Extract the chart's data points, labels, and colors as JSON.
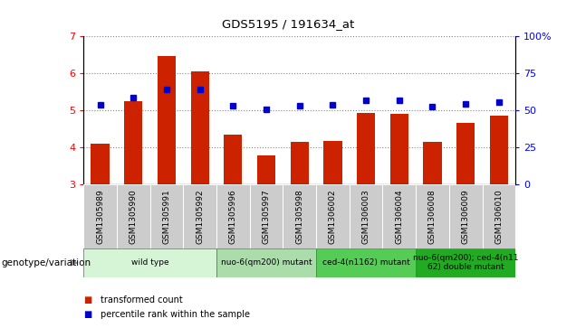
{
  "title": "GDS5195 / 191634_at",
  "samples": [
    "GSM1305989",
    "GSM1305990",
    "GSM1305991",
    "GSM1305992",
    "GSM1305996",
    "GSM1305997",
    "GSM1305998",
    "GSM1306002",
    "GSM1306003",
    "GSM1306004",
    "GSM1306008",
    "GSM1306009",
    "GSM1306010"
  ],
  "bar_values": [
    4.1,
    5.25,
    6.45,
    6.05,
    4.35,
    3.78,
    4.15,
    4.18,
    4.93,
    4.9,
    4.15,
    4.65,
    4.85
  ],
  "percentile_values": [
    5.15,
    5.35,
    5.57,
    5.57,
    5.12,
    5.02,
    5.11,
    5.14,
    5.27,
    5.26,
    5.1,
    5.16,
    5.22
  ],
  "bar_color": "#CC2200",
  "percentile_color": "#0000CC",
  "ylim": [
    3.0,
    7.0
  ],
  "yticks": [
    3,
    4,
    5,
    6,
    7
  ],
  "right_yticks_vals": [
    0,
    25,
    50,
    75,
    100
  ],
  "right_ytick_labels": [
    "0",
    "25",
    "50",
    "75",
    "100%"
  ],
  "right_ylim": [
    0,
    100
  ],
  "groups": [
    {
      "label": "wild type",
      "start": 0,
      "end": 3,
      "color": "#d6f5d6"
    },
    {
      "label": "nuo-6(qm200) mutant",
      "start": 4,
      "end": 6,
      "color": "#aaddaa"
    },
    {
      "label": "ced-4(n1162) mutant",
      "start": 7,
      "end": 9,
      "color": "#55cc55"
    },
    {
      "label": "nuo-6(qm200); ced-4(n11\n62) double mutant",
      "start": 10,
      "end": 12,
      "color": "#22aa22"
    }
  ],
  "genotype_label": "genotype/variation",
  "tick_bg_color": "#cccccc",
  "legend_items": [
    {
      "label": "transformed count",
      "color": "#CC2200"
    },
    {
      "label": "percentile rank within the sample",
      "color": "#0000CC"
    }
  ]
}
